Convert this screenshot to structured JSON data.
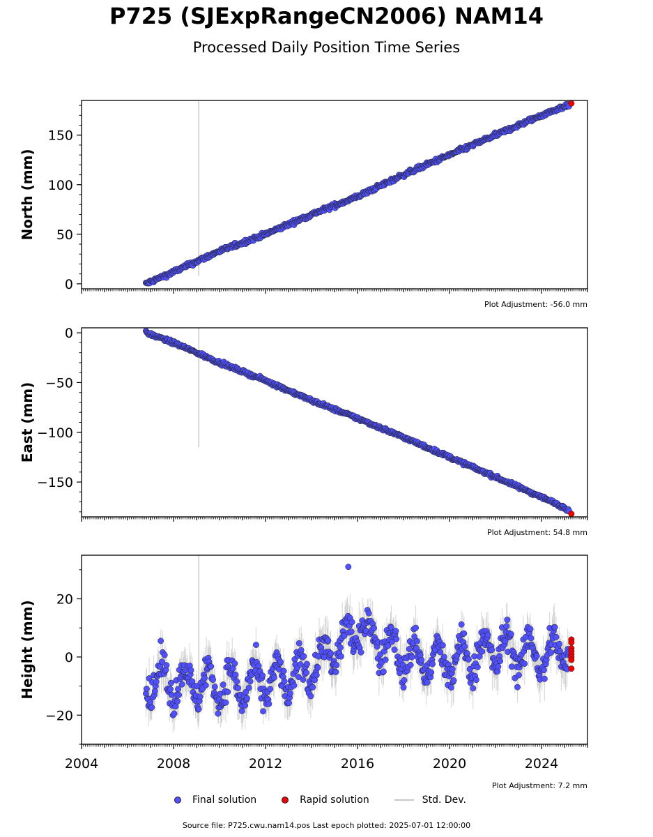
{
  "title": "P725 (SJExpRangeCN2006) NAM14",
  "subtitle": "Processed Daily Position Time Series",
  "legend": {
    "final_label": "Final solution",
    "rapid_label": "Rapid solution",
    "std_label": "Std. Dev."
  },
  "footer": "Source file: P725.cwu.nam14.pos  Last epoch plotted: 2025-07-01 12:00:00",
  "colors": {
    "final": "#5050ff",
    "rapid": "#ee0000",
    "std": "#c8c8c8",
    "edge": "#222222"
  },
  "chart_data": [
    {
      "type": "scatter",
      "panel": "north",
      "ylabel": "North (mm)",
      "adjustment": "Plot Adjustment: -56.0 mm",
      "xlim": [
        2004.0,
        2026.0
      ],
      "ylim": [
        -5,
        185
      ],
      "yticks": [
        0,
        50,
        100,
        150
      ],
      "ytick_labels": [
        "0",
        "50",
        "100",
        "150"
      ],
      "x_start": 2006.8,
      "x_end": 2025.3,
      "series": [
        {
          "name": "Final solution",
          "x": [
            2006.8,
            2008.0,
            2010.0,
            2012.0,
            2014.0,
            2016.0,
            2018.0,
            2020.0,
            2022.0,
            2024.0,
            2025.2
          ],
          "y": [
            0,
            12,
            33,
            50,
            70,
            88,
            110,
            130,
            150,
            170,
            181
          ]
        },
        {
          "name": "Rapid solution",
          "x": [
            2025.3
          ],
          "y": [
            182
          ]
        }
      ],
      "noise_mm": 1.5,
      "std_mm": 2.5,
      "outlier": {
        "x": 2009.1,
        "low": 8,
        "high": 185
      }
    },
    {
      "type": "scatter",
      "panel": "east",
      "ylabel": "East (mm)",
      "adjustment": "Plot Adjustment: 54.8 mm",
      "xlim": [
        2004.0,
        2026.0
      ],
      "ylim": [
        -185,
        5
      ],
      "yticks": [
        0,
        -50,
        -100,
        -150
      ],
      "ytick_labels": [
        "0",
        "−50",
        "−100",
        "−150"
      ],
      "x_start": 2006.8,
      "x_end": 2025.3,
      "series": [
        {
          "name": "Final solution",
          "x": [
            2006.8,
            2008.0,
            2010.0,
            2012.0,
            2014.0,
            2016.0,
            2018.0,
            2020.0,
            2022.0,
            2024.0,
            2025.2
          ],
          "y": [
            0,
            -10,
            -30,
            -48,
            -68,
            -86,
            -105,
            -125,
            -145,
            -165,
            -178
          ]
        },
        {
          "name": "Rapid solution",
          "x": [
            2025.3
          ],
          "y": [
            -182
          ]
        }
      ],
      "noise_mm": 1.2,
      "std_mm": 2.2,
      "outlier": {
        "x": 2009.1,
        "low": -115,
        "high": 5
      }
    },
    {
      "type": "scatter",
      "panel": "height",
      "ylabel": "Height (mm)",
      "adjustment": "Plot Adjustment: 7.2 mm",
      "xlim": [
        2004.0,
        2026.0
      ],
      "ylim": [
        -30,
        35
      ],
      "yticks": [
        -20,
        0,
        20
      ],
      "ytick_labels": [
        "−20",
        "0",
        "20"
      ],
      "xticks": [
        2004,
        2008,
        2012,
        2016,
        2020,
        2024
      ],
      "xtick_labels": [
        "2004",
        "2008",
        "2012",
        "2016",
        "2020",
        "2024"
      ],
      "x_start": 2006.8,
      "x_end": 2025.3,
      "series": [
        {
          "name": "Final solution",
          "x": [
            2007,
            2009,
            2011,
            2013,
            2015,
            2016,
            2018,
            2020,
            2022,
            2024,
            2025
          ],
          "y": [
            -8,
            -9,
            -10,
            -8,
            2,
            10,
            0,
            -2,
            3,
            0,
            3
          ]
        },
        {
          "name": "Rapid solution",
          "x": [
            2025.3,
            2025.3,
            2025.3,
            2025.3,
            2025.3,
            2025.3,
            2025.3,
            2025.3
          ],
          "y": [
            6,
            5,
            3,
            2,
            1,
            0,
            -1,
            -4
          ]
        }
      ],
      "seasonal_amp_mm": 6,
      "noise_mm": 4,
      "std_mm": 6,
      "max_point": {
        "x": 2015.6,
        "y": 31
      },
      "outlier": {
        "x": 2009.1,
        "low": -22,
        "high": 35
      }
    }
  ]
}
